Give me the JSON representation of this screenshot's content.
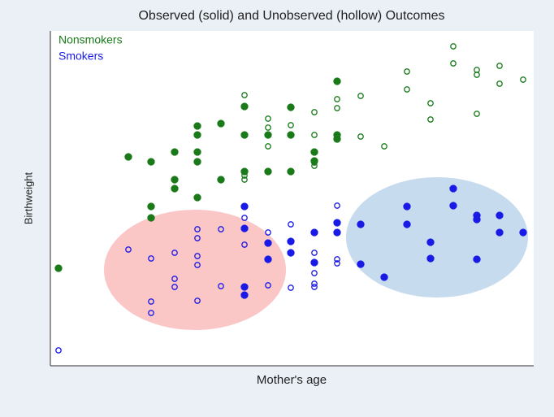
{
  "chart_data": {
    "type": "scatter",
    "title": "Observed (solid) and Unobserved (hollow) Outcomes",
    "xlabel": "Mother's age",
    "ylabel": "Birthweight",
    "xlim": [
      0,
      595
    ],
    "ylim": [
      0,
      412
    ],
    "legend": "top-left",
    "series": [
      {
        "name": "Nonsmokers",
        "color": "#1a7a1a",
        "x": [
          10,
          96,
          124,
          124,
          124,
          153,
          153,
          153,
          181,
          181,
          181,
          181,
          181,
          210,
          210,
          239,
          239,
          239,
          268,
          268,
          296,
          296,
          296,
          325,
          325,
          353,
          353,
          353,
          239,
          239,
          239,
          268,
          268,
          268,
          296,
          325,
          325,
          325,
          325,
          353,
          353,
          382,
          382,
          411,
          439,
          439,
          468,
          468,
          496,
          496,
          525,
          525,
          525,
          553,
          553,
          582
        ],
        "values": [
          120,
          257,
          251,
          196,
          182,
          263,
          229,
          218,
          295,
          284,
          263,
          251,
          207,
          298,
          229,
          319,
          284,
          239,
          284,
          239,
          318,
          284,
          239,
          263,
          252,
          350,
          284,
          279,
          333,
          229,
          234,
          304,
          293,
          270,
          296,
          312,
          284,
          246,
          250,
          328,
          317,
          332,
          282,
          270,
          362,
          340,
          323,
          303,
          393,
          372,
          364,
          358,
          310,
          369,
          347,
          352
        ],
        "filled": [
          true,
          true,
          true,
          true,
          true,
          true,
          true,
          true,
          true,
          true,
          true,
          true,
          true,
          true,
          true,
          true,
          true,
          true,
          true,
          true,
          true,
          true,
          true,
          true,
          true,
          true,
          true,
          true,
          false,
          false,
          false,
          false,
          false,
          false,
          false,
          false,
          false,
          false,
          false,
          false,
          false,
          false,
          false,
          false,
          false,
          false,
          false,
          false,
          false,
          false,
          false,
          false,
          false,
          false,
          false,
          false
        ]
      },
      {
        "name": "Smokers",
        "color": "#1a1ae6",
        "x": [
          239,
          239,
          268,
          268,
          296,
          296,
          325,
          325,
          353,
          353,
          382,
          382,
          411,
          439,
          439,
          468,
          468,
          496,
          496,
          525,
          525,
          525,
          553,
          553,
          582,
          239,
          239,
          10,
          96,
          124,
          124,
          124,
          153,
          153,
          153,
          181,
          181,
          181,
          181,
          181,
          210,
          210,
          239,
          239,
          268,
          268,
          296,
          296,
          325,
          325,
          325,
          325,
          353,
          353,
          353
        ],
        "values": [
          196,
          169,
          131,
          151,
          153,
          139,
          164,
          127,
          176,
          164,
          174,
          125,
          109,
          196,
          174,
          152,
          132,
          218,
          197,
          185,
          180,
          131,
          185,
          164,
          164,
          97,
          87,
          19,
          143,
          132,
          79,
          65,
          139,
          107,
          97,
          168,
          157,
          135,
          124,
          80,
          168,
          98,
          182,
          149,
          164,
          99,
          174,
          96,
          139,
          114,
          101,
          97,
          197,
          131,
          126
        ],
        "filled": [
          true,
          true,
          true,
          true,
          true,
          true,
          true,
          true,
          true,
          true,
          true,
          true,
          true,
          true,
          true,
          true,
          true,
          true,
          true,
          true,
          true,
          true,
          true,
          true,
          true,
          true,
          true,
          false,
          false,
          false,
          false,
          false,
          false,
          false,
          false,
          false,
          false,
          false,
          false,
          false,
          false,
          false,
          false,
          false,
          false,
          false,
          false,
          false,
          false,
          false,
          false,
          false,
          false,
          false,
          false
        ]
      }
    ]
  }
}
